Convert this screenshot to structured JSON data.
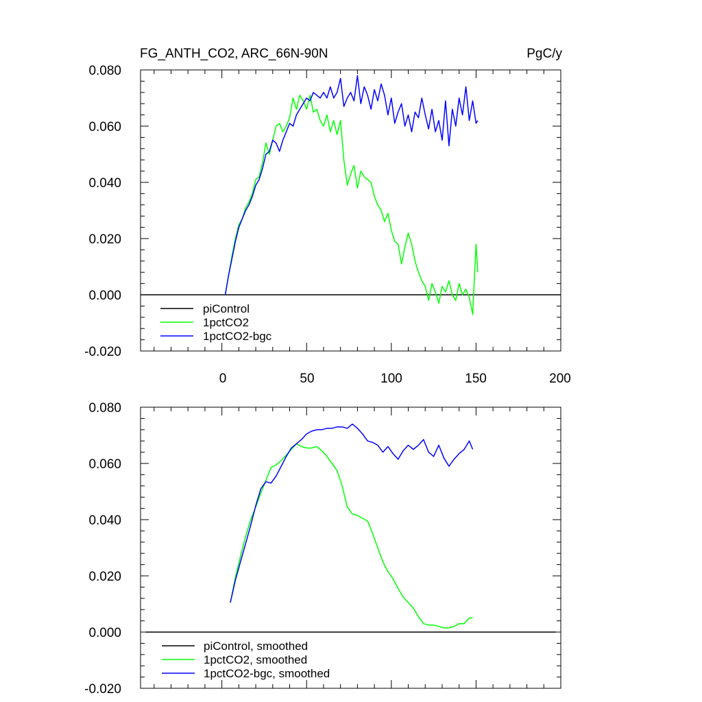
{
  "chart_data": [
    {
      "type": "line",
      "title": "FG_ANTH_CO2, ARC_66N-90N",
      "units": "PgC/y",
      "xlabel": "",
      "ylabel": "",
      "xlim": [
        -48,
        200
      ],
      "ylim": [
        -0.02,
        0.08
      ],
      "xticks": [
        0,
        50,
        100,
        150,
        200
      ],
      "xtick_labels": [
        "0",
        "50",
        "100",
        "150",
        "200"
      ],
      "yticks": [
        -0.02,
        0,
        0.02,
        0.04,
        0.06,
        0.08
      ],
      "ytick_labels": [
        "-0.020",
        "0.000",
        "0.020",
        "0.040",
        "0.060",
        "0.080"
      ],
      "legend_position": "bottom-left",
      "series": [
        {
          "name": "piControl",
          "color": "#000000",
          "x": [
            -48,
            200
          ],
          "values": [
            0,
            0
          ]
        },
        {
          "name": "1pctCO2",
          "color": "#00ff00",
          "x": [
            2,
            4,
            6,
            8,
            10,
            12,
            14,
            16,
            18,
            20,
            22,
            24,
            26,
            28,
            30,
            32,
            34,
            36,
            38,
            40,
            42,
            44,
            46,
            48,
            50,
            52,
            54,
            56,
            58,
            60,
            62,
            64,
            66,
            68,
            70,
            72,
            74,
            76,
            78,
            80,
            82,
            84,
            86,
            88,
            90,
            92,
            94,
            96,
            98,
            100,
            102,
            104,
            106,
            108,
            110,
            112,
            114,
            116,
            118,
            120,
            122,
            124,
            126,
            128,
            130,
            132,
            134,
            136,
            138,
            140,
            142,
            144,
            146,
            148,
            150,
            151
          ],
          "values": [
            0.0,
            0.007,
            0.014,
            0.02,
            0.025,
            0.027,
            0.031,
            0.033,
            0.036,
            0.041,
            0.042,
            0.047,
            0.054,
            0.05,
            0.055,
            0.06,
            0.061,
            0.058,
            0.06,
            0.063,
            0.07,
            0.066,
            0.071,
            0.069,
            0.066,
            0.071,
            0.065,
            0.066,
            0.062,
            0.06,
            0.064,
            0.058,
            0.062,
            0.057,
            0.062,
            0.048,
            0.039,
            0.043,
            0.046,
            0.038,
            0.044,
            0.042,
            0.041,
            0.04,
            0.035,
            0.032,
            0.03,
            0.026,
            0.029,
            0.023,
            0.019,
            0.018,
            0.011,
            0.017,
            0.022,
            0.018,
            0.012,
            0.008,
            0.005,
            0.003,
            -0.002,
            0.004,
            0.001,
            -0.003,
            0.003,
            0.001,
            0.005,
            0.0,
            -0.002,
            0.004,
            0.0,
            0.002,
            -0.001,
            -0.007,
            0.018,
            0.008
          ]
        },
        {
          "name": "1pctCO2-bgc",
          "color": "#0000ff",
          "x": [
            2,
            4,
            6,
            8,
            10,
            12,
            14,
            16,
            18,
            20,
            22,
            24,
            26,
            28,
            30,
            32,
            34,
            36,
            38,
            40,
            42,
            44,
            46,
            48,
            50,
            52,
            54,
            56,
            58,
            60,
            62,
            64,
            66,
            68,
            70,
            72,
            74,
            76,
            78,
            80,
            82,
            84,
            86,
            88,
            90,
            92,
            94,
            96,
            98,
            100,
            102,
            104,
            106,
            108,
            110,
            112,
            114,
            116,
            118,
            120,
            122,
            124,
            126,
            128,
            130,
            132,
            134,
            136,
            138,
            140,
            142,
            144,
            146,
            148,
            150,
            151
          ],
          "values": [
            0.0,
            0.007,
            0.013,
            0.019,
            0.024,
            0.027,
            0.03,
            0.032,
            0.035,
            0.039,
            0.041,
            0.045,
            0.05,
            0.051,
            0.055,
            0.054,
            0.051,
            0.055,
            0.058,
            0.061,
            0.06,
            0.064,
            0.066,
            0.068,
            0.07,
            0.069,
            0.072,
            0.071,
            0.07,
            0.072,
            0.07,
            0.074,
            0.07,
            0.072,
            0.077,
            0.067,
            0.07,
            0.072,
            0.069,
            0.078,
            0.068,
            0.074,
            0.071,
            0.066,
            0.073,
            0.069,
            0.075,
            0.071,
            0.064,
            0.07,
            0.061,
            0.065,
            0.068,
            0.06,
            0.064,
            0.058,
            0.065,
            0.063,
            0.07,
            0.064,
            0.059,
            0.066,
            0.058,
            0.062,
            0.055,
            0.069,
            0.053,
            0.066,
            0.06,
            0.07,
            0.064,
            0.074,
            0.062,
            0.069,
            0.061,
            0.062
          ]
        }
      ]
    },
    {
      "type": "line",
      "title": "",
      "xlabel": "",
      "ylabel": "",
      "xlim": [
        -48,
        200
      ],
      "ylim": [
        -0.02,
        0.08
      ],
      "xticks": [
        0,
        50,
        100,
        150,
        200
      ],
      "yticks": [
        -0.02,
        0,
        0.02,
        0.04,
        0.06,
        0.08
      ],
      "ytick_labels": [
        "-0.020",
        "0.000",
        "0.020",
        "0.040",
        "0.060",
        "0.080"
      ],
      "legend_position": "bottom-left",
      "series": [
        {
          "name": "piControl, smoothed",
          "color": "#000000",
          "x": [
            -45,
            197
          ],
          "values": [
            0,
            0
          ]
        },
        {
          "name": "1pctCO2, smoothed",
          "color": "#00ff00",
          "x": [
            5,
            8,
            11,
            14,
            17,
            20,
            23,
            26,
            29,
            32,
            35,
            38,
            41,
            44,
            47,
            50,
            53,
            56,
            59,
            62,
            65,
            68,
            71,
            74,
            77,
            80,
            83,
            86,
            89,
            92,
            95,
            98,
            101,
            104,
            107,
            110,
            113,
            116,
            119,
            122,
            125,
            128,
            131,
            134,
            137,
            140,
            143,
            146,
            148
          ],
          "values": [
            0.0105,
            0.0195,
            0.027,
            0.034,
            0.04,
            0.0445,
            0.0495,
            0.054,
            0.0585,
            0.0595,
            0.061,
            0.063,
            0.065,
            0.067,
            0.066,
            0.0655,
            0.0655,
            0.066,
            0.0645,
            0.0625,
            0.06,
            0.0575,
            0.052,
            0.0445,
            0.042,
            0.0415,
            0.0405,
            0.0395,
            0.035,
            0.03,
            0.025,
            0.0215,
            0.019,
            0.0155,
            0.0125,
            0.0105,
            0.0085,
            0.0055,
            0.003,
            0.0025,
            0.0025,
            0.002,
            0.0015,
            0.0015,
            0.002,
            0.003,
            0.003,
            0.005,
            0.005
          ]
        },
        {
          "name": "1pctCO2-bgc, smoothed",
          "color": "#0000ff",
          "x": [
            5,
            8,
            11,
            14,
            17,
            20,
            23,
            26,
            29,
            32,
            35,
            38,
            41,
            44,
            47,
            50,
            53,
            56,
            59,
            62,
            65,
            68,
            71,
            74,
            77,
            80,
            83,
            86,
            89,
            92,
            95,
            98,
            101,
            104,
            107,
            110,
            113,
            116,
            119,
            122,
            125,
            128,
            131,
            134,
            137,
            140,
            143,
            146,
            148
          ],
          "values": [
            0.0105,
            0.0185,
            0.025,
            0.0315,
            0.038,
            0.045,
            0.051,
            0.0535,
            0.053,
            0.0555,
            0.059,
            0.0625,
            0.0655,
            0.067,
            0.0685,
            0.0705,
            0.0715,
            0.072,
            0.072,
            0.0725,
            0.0725,
            0.073,
            0.073,
            0.0725,
            0.074,
            0.0725,
            0.0705,
            0.068,
            0.0675,
            0.0665,
            0.064,
            0.066,
            0.0635,
            0.0615,
            0.0645,
            0.0665,
            0.065,
            0.0665,
            0.0685,
            0.064,
            0.0625,
            0.0665,
            0.062,
            0.059,
            0.0615,
            0.0635,
            0.065,
            0.068,
            0.065
          ]
        }
      ]
    }
  ]
}
